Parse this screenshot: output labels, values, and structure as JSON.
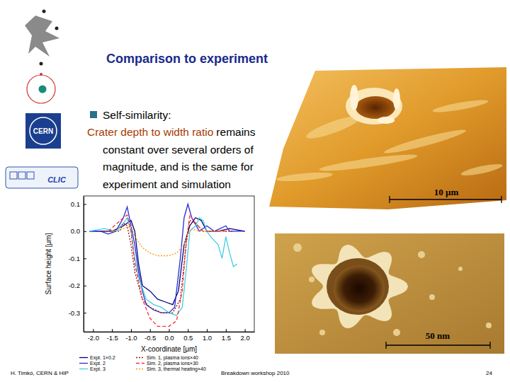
{
  "slide": {
    "title": "Comparison to experiment",
    "bullet": "Self-similarity:",
    "highlight": "Crater depth to width ratio",
    "lines": [
      "remains",
      "constant over several orders of",
      "magnitude, and is the same for",
      "experiment and simulation"
    ],
    "scale_bars": [
      "10 μm",
      "50 nm"
    ],
    "logos": [
      "CERN",
      "CLIC"
    ],
    "footer": {
      "author": "H. Timkó, CERN & HIP",
      "event": "Breakdown workshop 2010",
      "page": 24
    }
  },
  "chart_data": {
    "type": "line",
    "x_label": "X-coordinate [μm]",
    "y_label": "Surface height [μm]",
    "xlim": [
      -2.25,
      2.25
    ],
    "ylim": [
      -0.37,
      0.13
    ],
    "xticks": [
      {
        "value": -2,
        "label": "-2.0"
      },
      {
        "value": -1.5,
        "label": "-1.5"
      },
      {
        "value": -1,
        "label": "-1.0"
      },
      {
        "value": -0.5,
        "label": "-0.5"
      },
      {
        "value": 0,
        "label": "0.0"
      },
      {
        "value": 0.5,
        "label": "0.5"
      },
      {
        "value": 1,
        "label": "1.0"
      },
      {
        "value": 1.5,
        "label": "1.5"
      },
      {
        "value": 2,
        "label": "2.0"
      }
    ],
    "yticks": [
      0.1,
      {
        "value": 0,
        "label": "0.0"
      },
      -0.1,
      -0.2,
      -0.3
    ],
    "series": [
      {
        "name": "Expt. 1×0.2",
        "color": "#000080",
        "line_style": "solid",
        "x": [
          -2.1,
          -1.5,
          -1.2,
          -1.0,
          -0.9,
          -0.8,
          -0.7,
          -0.5,
          -0.3,
          -0.1,
          0.1,
          0.25,
          0.4,
          0.55,
          0.7,
          0.85,
          1.0,
          1.3,
          1.6,
          2.0
        ],
        "values": [
          0.0,
          0.0,
          0.02,
          0.04,
          0.0,
          -0.12,
          -0.2,
          -0.22,
          -0.25,
          -0.26,
          -0.27,
          -0.22,
          -0.05,
          0.02,
          0.05,
          0.04,
          0.0,
          0.0,
          0.01,
          0.0
        ]
      },
      {
        "name": "Expt. 2",
        "color": "#2b2bd6",
        "line_style": "solid",
        "x": [
          -2.1,
          -1.8,
          -1.6,
          -1.4,
          -1.2,
          -1.1,
          -1.0,
          -0.9,
          -0.8,
          -0.7,
          -0.6,
          -0.4,
          -0.2,
          0.0,
          0.15,
          0.3,
          0.4,
          0.5,
          0.6,
          0.8,
          1.0,
          1.2,
          1.5,
          1.6,
          2.0
        ],
        "values": [
          0.0,
          0.0,
          -0.01,
          0.0,
          0.05,
          0.09,
          0.02,
          -0.05,
          -0.15,
          -0.22,
          -0.27,
          -0.29,
          -0.3,
          -0.3,
          -0.28,
          -0.1,
          0.05,
          0.1,
          0.05,
          0.0,
          0.02,
          0.0,
          0.02,
          0.0,
          0.0
        ]
      },
      {
        "name": "Expt. 3",
        "color": "#3fd0e0",
        "line_style": "solid",
        "x": [
          -2.1,
          -1.7,
          -1.4,
          -1.2,
          -1.1,
          -1.0,
          -0.9,
          -0.8,
          -0.6,
          -0.4,
          -0.2,
          0.0,
          0.2,
          0.35,
          0.45,
          0.55,
          0.7,
          0.8,
          0.9,
          1.0,
          1.1,
          1.3,
          1.4,
          1.5,
          1.6,
          1.7,
          1.8
        ],
        "values": [
          0.0,
          0.01,
          0.0,
          0.03,
          0.05,
          0.0,
          -0.1,
          -0.17,
          -0.25,
          -0.27,
          -0.28,
          -0.3,
          -0.31,
          -0.28,
          -0.15,
          0.0,
          0.02,
          0.05,
          0.04,
          0.0,
          -0.02,
          -0.05,
          -0.1,
          -0.02,
          -0.08,
          -0.13,
          -0.12
        ]
      },
      {
        "name": "Sim. 1, plasma ions×40",
        "color": "#8b1a1a",
        "line_style": "dotted",
        "x": [
          -1.8,
          -1.3,
          -1.2,
          -1.1,
          -1.0,
          -0.9,
          -0.7,
          -0.5,
          -0.2,
          0.1,
          0.3,
          0.45,
          0.55,
          0.7,
          0.9,
          1.3,
          1.7
        ],
        "values": [
          0.0,
          0.0,
          0.03,
          0.02,
          -0.05,
          -0.15,
          -0.25,
          -0.28,
          -0.3,
          -0.3,
          -0.25,
          -0.05,
          0.04,
          0.03,
          0.0,
          0.0,
          0.0
        ]
      },
      {
        "name": "Sim. 2, plasma ions×30",
        "color": "#ff3030",
        "line_style": "dashed",
        "x": [
          -1.6,
          -1.2,
          -1.1,
          -1.0,
          -0.9,
          -0.7,
          -0.5,
          -0.3,
          0.0,
          0.2,
          0.35,
          0.45,
          0.55,
          0.7,
          0.9,
          1.2,
          1.6
        ],
        "values": [
          0.0,
          0.05,
          0.06,
          0.0,
          -0.12,
          -0.25,
          -0.32,
          -0.35,
          -0.35,
          -0.33,
          -0.22,
          -0.05,
          0.06,
          0.03,
          0.0,
          0.0,
          0.0
        ]
      },
      {
        "name": "Sim. 3, thermal heating×40",
        "color": "#ff9900",
        "line_style": "dotted",
        "x": [
          -1.5,
          -1.2,
          -1.0,
          -0.9,
          -0.7,
          -0.5,
          -0.3,
          0.0,
          0.2,
          0.4,
          0.5,
          0.6,
          0.8,
          1.1,
          1.5
        ],
        "values": [
          0.0,
          0.01,
          0.02,
          -0.02,
          -0.06,
          -0.08,
          -0.09,
          -0.09,
          -0.08,
          -0.05,
          -0.01,
          0.01,
          0.0,
          0.0,
          0.0
        ]
      }
    ]
  }
}
